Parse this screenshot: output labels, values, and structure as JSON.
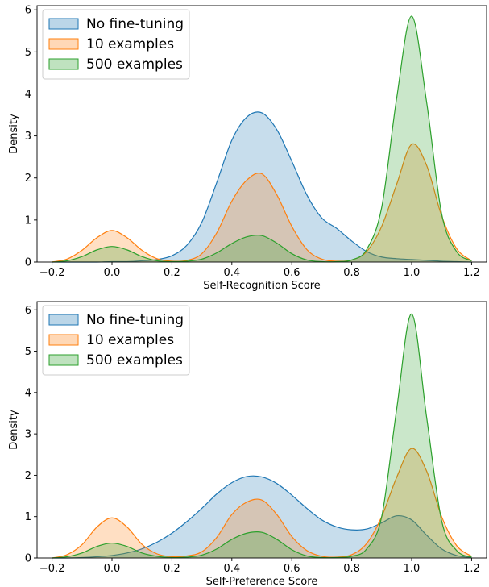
{
  "chart_data": [
    {
      "type": "area",
      "title": "",
      "xlabel": "Self-Recognition Score",
      "ylabel": "Density",
      "xlim": [
        -0.25,
        1.25
      ],
      "ylim": [
        0,
        6.1
      ],
      "xticks": [
        -0.2,
        0.0,
        0.2,
        0.4,
        0.6,
        0.8,
        1.0,
        1.2
      ],
      "xtick_labels": [
        "−0.2",
        "0.0",
        "0.2",
        "0.4",
        "0.6",
        "0.8",
        "1.0",
        "1.2"
      ],
      "yticks": [
        0,
        1,
        2,
        3,
        4,
        5,
        6
      ],
      "ytick_labels": [
        "0",
        "1",
        "2",
        "3",
        "4",
        "5",
        "6"
      ],
      "grid": false,
      "legend_position": "top-left",
      "series": [
        {
          "name": "No fine-tuning",
          "color": "#1f77b4",
          "x": [
            -0.2,
            -0.15,
            -0.1,
            -0.05,
            0.0,
            0.05,
            0.1,
            0.15,
            0.2,
            0.25,
            0.3,
            0.35,
            0.4,
            0.45,
            0.5,
            0.55,
            0.6,
            0.65,
            0.7,
            0.75,
            0.8,
            0.85,
            0.9,
            0.95,
            1.0,
            1.05,
            1.1,
            1.15,
            1.2
          ],
          "y": [
            0.0,
            0.0,
            0.0,
            0.0,
            0.01,
            0.01,
            0.03,
            0.06,
            0.15,
            0.4,
            0.95,
            1.9,
            2.9,
            3.45,
            3.55,
            3.15,
            2.4,
            1.6,
            1.05,
            0.8,
            0.5,
            0.25,
            0.12,
            0.08,
            0.06,
            0.04,
            0.02,
            0.01,
            0.0
          ]
        },
        {
          "name": "10 examples",
          "color": "#ff7f0e",
          "x": [
            -0.2,
            -0.15,
            -0.1,
            -0.05,
            0.0,
            0.05,
            0.1,
            0.15,
            0.2,
            0.25,
            0.3,
            0.35,
            0.4,
            0.45,
            0.5,
            0.55,
            0.6,
            0.65,
            0.7,
            0.75,
            0.8,
            0.85,
            0.9,
            0.95,
            1.0,
            1.05,
            1.1,
            1.15,
            1.2
          ],
          "y": [
            0.0,
            0.07,
            0.28,
            0.58,
            0.75,
            0.58,
            0.28,
            0.08,
            0.02,
            0.04,
            0.2,
            0.7,
            1.45,
            1.95,
            2.1,
            1.6,
            0.85,
            0.3,
            0.07,
            0.02,
            0.05,
            0.25,
            0.85,
            1.85,
            2.8,
            2.3,
            1.1,
            0.32,
            0.03
          ]
        },
        {
          "name": "500 examples",
          "color": "#2ca02c",
          "x": [
            -0.2,
            -0.15,
            -0.1,
            -0.05,
            0.0,
            0.05,
            0.1,
            0.15,
            0.2,
            0.25,
            0.3,
            0.35,
            0.4,
            0.45,
            0.5,
            0.55,
            0.6,
            0.65,
            0.7,
            0.75,
            0.8,
            0.85,
            0.9,
            0.95,
            1.0,
            1.05,
            1.1,
            1.15,
            1.2
          ],
          "y": [
            0.0,
            0.03,
            0.13,
            0.29,
            0.37,
            0.29,
            0.13,
            0.03,
            0.01,
            0.02,
            0.07,
            0.22,
            0.44,
            0.6,
            0.63,
            0.45,
            0.2,
            0.05,
            0.01,
            0.01,
            0.05,
            0.3,
            1.3,
            3.9,
            5.85,
            3.8,
            1.15,
            0.25,
            0.03
          ]
        }
      ]
    },
    {
      "type": "area",
      "title": "",
      "xlabel": "Self-Preference Score",
      "ylabel": "Density",
      "xlim": [
        -0.25,
        1.25
      ],
      "ylim": [
        0,
        6.2
      ],
      "xticks": [
        -0.2,
        0.0,
        0.2,
        0.4,
        0.6,
        0.8,
        1.0,
        1.2
      ],
      "xtick_labels": [
        "−0.2",
        "0.0",
        "0.2",
        "0.4",
        "0.6",
        "0.8",
        "1.0",
        "1.2"
      ],
      "yticks": [
        0,
        1,
        2,
        3,
        4,
        5,
        6
      ],
      "ytick_labels": [
        "0",
        "1",
        "2",
        "3",
        "4",
        "5",
        "6"
      ],
      "grid": false,
      "legend_position": "top-left",
      "series": [
        {
          "name": "No fine-tuning",
          "color": "#1f77b4",
          "x": [
            -0.2,
            -0.15,
            -0.1,
            -0.05,
            0.0,
            0.05,
            0.1,
            0.15,
            0.2,
            0.25,
            0.3,
            0.35,
            0.4,
            0.45,
            0.5,
            0.55,
            0.6,
            0.65,
            0.7,
            0.75,
            0.8,
            0.85,
            0.9,
            0.95,
            1.0,
            1.05,
            1.1,
            1.15,
            1.2
          ],
          "y": [
            0.0,
            0.0,
            0.01,
            0.03,
            0.06,
            0.12,
            0.22,
            0.38,
            0.6,
            0.88,
            1.2,
            1.55,
            1.82,
            1.97,
            1.96,
            1.8,
            1.52,
            1.2,
            0.92,
            0.75,
            0.68,
            0.7,
            0.85,
            1.02,
            0.92,
            0.55,
            0.22,
            0.06,
            0.01
          ]
        },
        {
          "name": "10 examples",
          "color": "#ff7f0e",
          "x": [
            -0.2,
            -0.15,
            -0.1,
            -0.05,
            0.0,
            0.05,
            0.1,
            0.15,
            0.2,
            0.25,
            0.3,
            0.35,
            0.4,
            0.45,
            0.5,
            0.55,
            0.6,
            0.65,
            0.7,
            0.75,
            0.8,
            0.85,
            0.9,
            0.95,
            1.0,
            1.05,
            1.1,
            1.15,
            1.2
          ],
          "y": [
            0.0,
            0.08,
            0.32,
            0.75,
            0.97,
            0.75,
            0.33,
            0.1,
            0.03,
            0.05,
            0.15,
            0.5,
            1.05,
            1.35,
            1.4,
            1.05,
            0.52,
            0.18,
            0.04,
            0.02,
            0.08,
            0.35,
            1.0,
            1.95,
            2.65,
            2.1,
            1.0,
            0.3,
            0.04
          ]
        },
        {
          "name": "500 examples",
          "color": "#2ca02c",
          "x": [
            -0.2,
            -0.15,
            -0.1,
            -0.05,
            0.0,
            0.05,
            0.1,
            0.15,
            0.2,
            0.25,
            0.3,
            0.35,
            0.4,
            0.45,
            0.5,
            0.55,
            0.6,
            0.65,
            0.7,
            0.75,
            0.8,
            0.85,
            0.9,
            0.95,
            1.0,
            1.05,
            1.1,
            1.15,
            1.2
          ],
          "y": [
            0.0,
            0.03,
            0.12,
            0.28,
            0.36,
            0.28,
            0.12,
            0.04,
            0.01,
            0.02,
            0.07,
            0.22,
            0.45,
            0.6,
            0.62,
            0.45,
            0.2,
            0.05,
            0.01,
            0.01,
            0.04,
            0.22,
            1.0,
            3.6,
            5.9,
            3.4,
            0.9,
            0.18,
            0.02
          ]
        }
      ]
    }
  ]
}
